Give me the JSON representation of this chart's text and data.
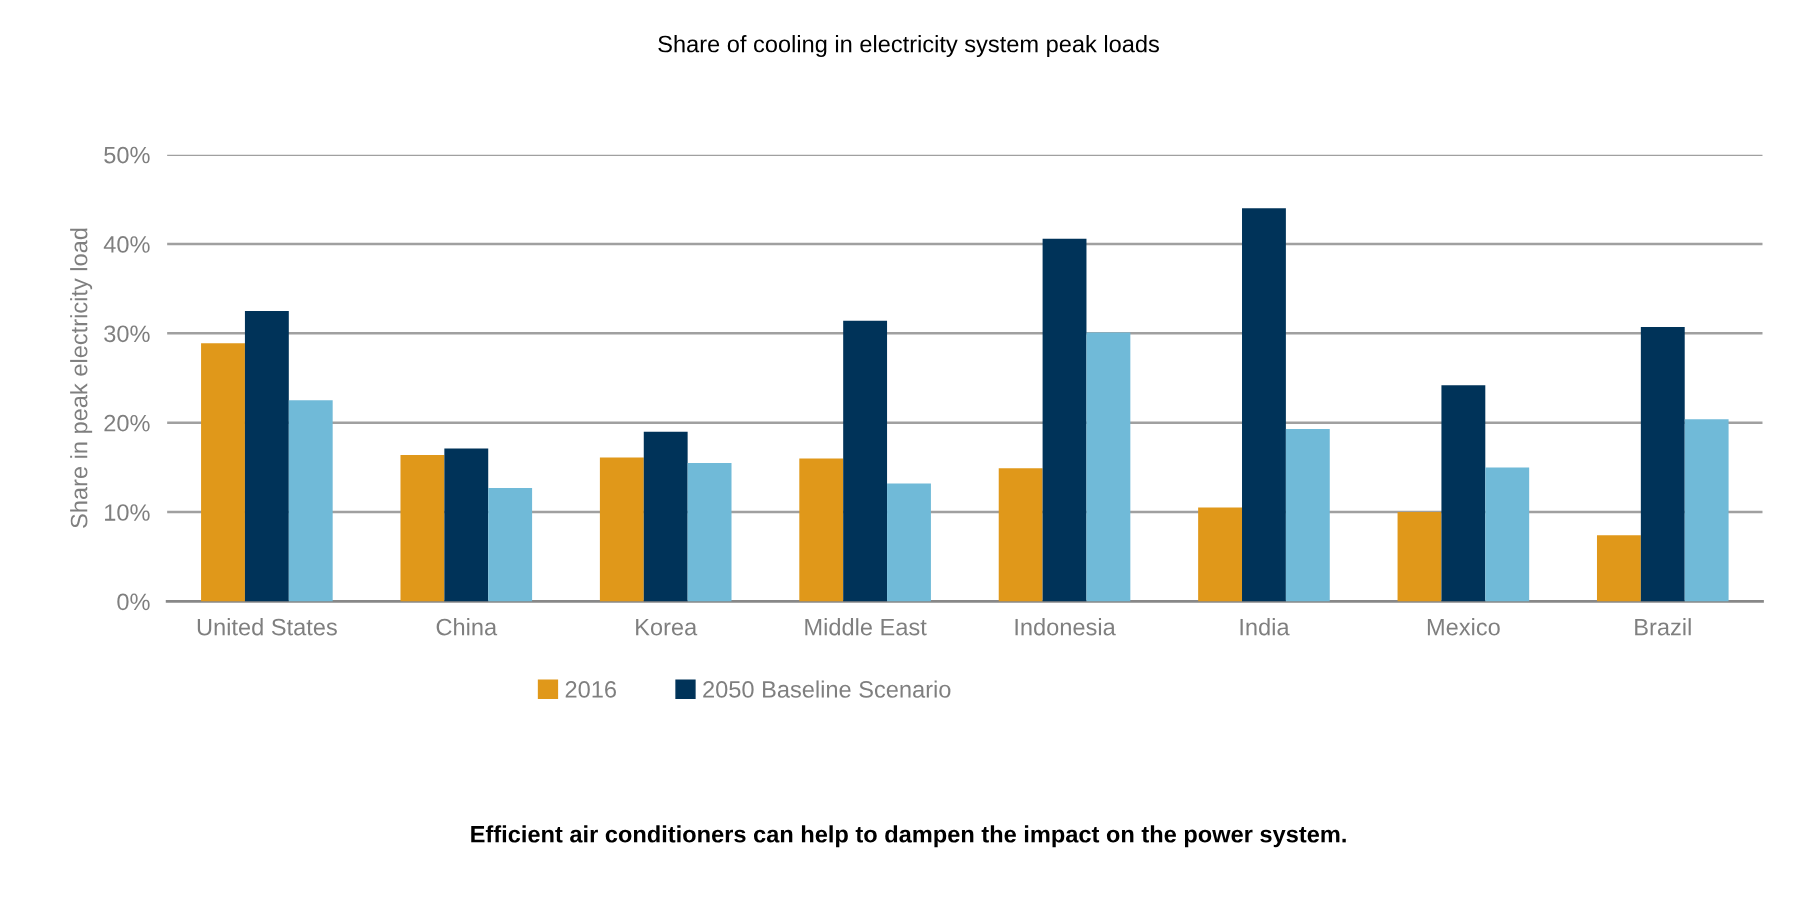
{
  "chart_data": {
    "type": "bar",
    "title": "Share of cooling in electricity system peak loads",
    "ylabel": "Share in peak electricity load",
    "categories": [
      "United States",
      "China",
      "Korea",
      "Middle East",
      "Indonesia",
      "India",
      "Mexico",
      "Brazil"
    ],
    "series": [
      {
        "name": "2016",
        "color": "#e0981a",
        "values": [
          28.9,
          16.4,
          16.1,
          16.0,
          14.9,
          10.5,
          10.0,
          7.4
        ]
      },
      {
        "name": "2050 Baseline Scenario",
        "color": "#003359",
        "values": [
          32.5,
          17.1,
          19.0,
          31.4,
          40.6,
          44.0,
          24.2,
          30.7
        ]
      },
      {
        "color": "#70bad8",
        "values": [
          22.5,
          12.7,
          15.5,
          13.2,
          30.1,
          19.3,
          15.0,
          20.4
        ]
      }
    ],
    "ylim": [
      0,
      50
    ],
    "yticks": [
      {
        "value": 0,
        "label": "0%"
      },
      {
        "value": 10,
        "label": "10%"
      },
      {
        "value": 20,
        "label": "20%"
      },
      {
        "value": 30,
        "label": "30%"
      },
      {
        "value": 40,
        "label": "40%"
      },
      {
        "value": 50,
        "label": "50%"
      }
    ],
    "grid": "y",
    "legend": "bottom",
    "annotations": [
      "Efficient air conditioners can help to dampen the impact on the power system."
    ]
  }
}
